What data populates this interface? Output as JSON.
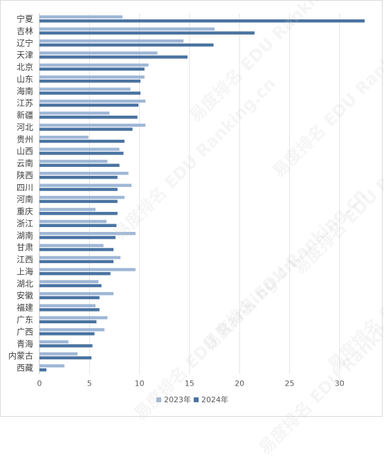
{
  "chart_data": {
    "type": "bar",
    "orientation": "horizontal",
    "categories": [
      "宁夏",
      "吉林",
      "辽宁",
      "天津",
      "北京",
      "山东",
      "海南",
      "江苏",
      "新疆",
      "河北",
      "贵州",
      "山西",
      "云南",
      "陕西",
      "四川",
      "河南",
      "重庆",
      "浙江",
      "湖南",
      "甘肃",
      "江西",
      "上海",
      "湖北",
      "安徽",
      "福建",
      "广东",
      "广西",
      "青海",
      "内蒙古",
      "西藏"
    ],
    "series": [
      {
        "name": "2023年",
        "color": "#9fb7d6",
        "values": [
          8.3,
          17.5,
          14.4,
          11.8,
          10.9,
          10.5,
          9.1,
          10.6,
          7.0,
          10.6,
          4.9,
          8.0,
          6.8,
          8.9,
          9.2,
          8.5,
          5.6,
          6.7,
          9.6,
          6.4,
          8.1,
          9.6,
          5.9,
          7.4,
          5.6,
          6.8,
          6.5,
          2.9,
          3.8,
          2.5
        ]
      },
      {
        "name": "2024年",
        "color": "#4a73a0",
        "values": [
          32.5,
          21.5,
          17.4,
          14.8,
          10.5,
          10.1,
          10.1,
          9.9,
          9.8,
          9.3,
          8.5,
          8.4,
          8.0,
          7.8,
          7.8,
          7.8,
          7.8,
          7.7,
          7.6,
          7.4,
          7.4,
          7.1,
          6.2,
          6.0,
          6.0,
          5.7,
          5.5,
          5.3,
          5.2,
          0.7
        ]
      }
    ],
    "xlim": [
      0,
      32.5
    ],
    "xticks": [
      0,
      5,
      10,
      15,
      20,
      25,
      30
    ],
    "grid": true,
    "legend_position": "bottom",
    "watermark": "易度排名 EDU Ranking.cn"
  }
}
